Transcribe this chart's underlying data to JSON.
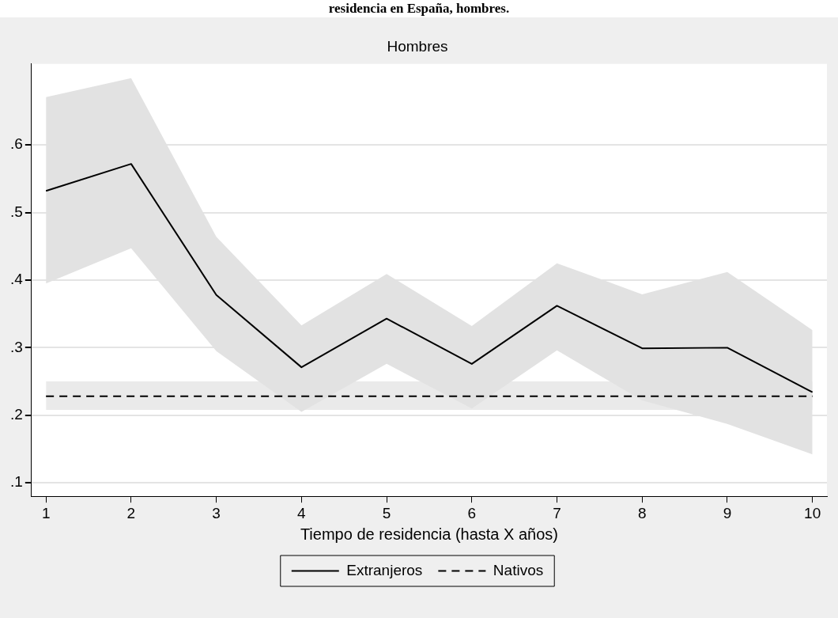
{
  "chart_data": {
    "type": "line",
    "title": "residencia en España, hombres.",
    "subtitle": "Hombres",
    "xlabel": "Tiempo de residencia (hasta X años)",
    "x": [
      1,
      2,
      3,
      4,
      5,
      6,
      7,
      8,
      9,
      10
    ],
    "xlim": [
      0.83,
      10.17
    ],
    "xticks": [
      1,
      2,
      3,
      4,
      5,
      6,
      7,
      8,
      9,
      10
    ],
    "ylim": [
      0.08,
      0.72
    ],
    "yticks": [
      {
        "value": 0.1,
        "label": ".1"
      },
      {
        "value": 0.2,
        "label": ".2"
      },
      {
        "value": 0.3,
        "label": ".3"
      },
      {
        "value": 0.4,
        "label": ".4"
      },
      {
        "value": 0.5,
        "label": ".5"
      },
      {
        "value": 0.6,
        "label": ".6"
      }
    ],
    "series": [
      {
        "name": "Extranjeros",
        "color": "#000000",
        "line_style": "solid",
        "values": [
          0.532,
          0.572,
          0.378,
          0.271,
          0.343,
          0.276,
          0.362,
          0.299,
          0.3,
          0.234
        ],
        "upper": [
          0.671,
          0.699,
          0.464,
          0.333,
          0.409,
          0.332,
          0.425,
          0.379,
          0.412,
          0.326
        ],
        "lower": [
          0.395,
          0.447,
          0.295,
          0.205,
          0.276,
          0.21,
          0.296,
          0.222,
          0.187,
          0.142
        ]
      },
      {
        "name": "Nativos",
        "color": "#000000",
        "line_style": "dashed",
        "values": [
          0.228,
          0.228,
          0.228,
          0.228,
          0.228,
          0.228,
          0.228,
          0.228,
          0.228,
          0.228
        ],
        "upper": [
          0.25,
          0.25,
          0.25,
          0.25,
          0.25,
          0.25,
          0.25,
          0.25,
          0.25,
          0.25
        ],
        "lower": [
          0.208,
          0.208,
          0.208,
          0.208,
          0.208,
          0.208,
          0.208,
          0.208,
          0.208,
          0.208
        ]
      }
    ],
    "grid": "y",
    "legend": "bottom",
    "marker": "none"
  }
}
